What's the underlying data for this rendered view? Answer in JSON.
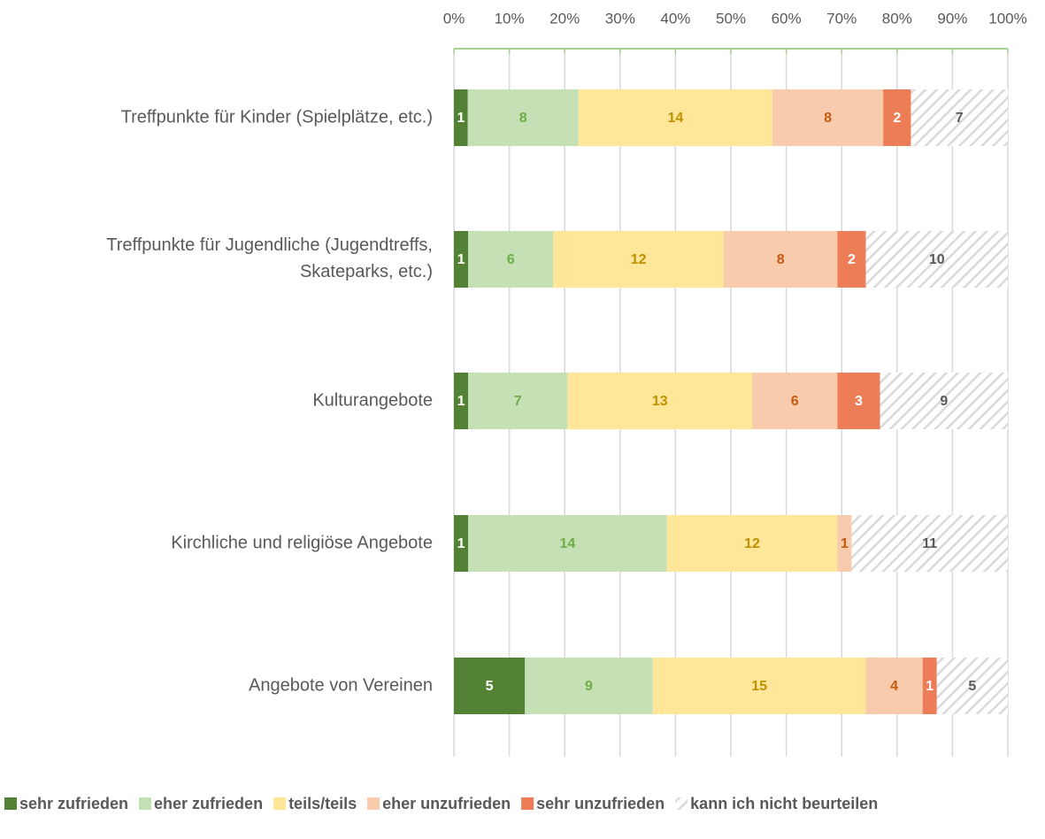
{
  "chart_data": {
    "type": "stacked_bar_100",
    "categories": [
      "Treffpunkte für Kinder (Spielplätze, etc.)",
      "Treffpunkte für Jugendliche (Jugendtreffs,\nSkateparks, etc.)",
      "Kulturangebote",
      "Kirchliche und religiöse Angebote",
      "Angebote von Vereinen"
    ],
    "series": [
      {
        "name": "sehr zufrieden",
        "color": "#548235",
        "label_color": "#ffffff",
        "values": [
          1,
          1,
          1,
          1,
          5
        ]
      },
      {
        "name": "eher zufrieden",
        "color": "#c5e0b4",
        "label_color": "#70ad47",
        "values": [
          8,
          6,
          7,
          14,
          9
        ]
      },
      {
        "name": "teils/teils",
        "color": "#ffe699",
        "label_color": "#bf9000",
        "values": [
          14,
          12,
          13,
          12,
          15
        ]
      },
      {
        "name": "eher unzufrieden",
        "color": "#f8cbad",
        "label_color": "#c55a11",
        "values": [
          8,
          8,
          6,
          1,
          4
        ]
      },
      {
        "name": "sehr unzufrieden",
        "color": "#ed7d57",
        "label_color": "#ffffff",
        "values": [
          2,
          2,
          3,
          null,
          1
        ]
      },
      {
        "name": "kann ich nicht beurteilen",
        "color": "#d9d9d9",
        "hatched": true,
        "label_color": "#595959",
        "values": [
          7,
          10,
          9,
          11,
          5
        ]
      }
    ],
    "xlim": [
      0,
      100
    ],
    "xticks": [
      {
        "value": 0,
        "label": "0%"
      },
      {
        "value": 10,
        "label": "10%"
      },
      {
        "value": 20,
        "label": "20%"
      },
      {
        "value": 30,
        "label": "30%"
      },
      {
        "value": 40,
        "label": "40%"
      },
      {
        "value": 50,
        "label": "50%"
      },
      {
        "value": 60,
        "label": "60%"
      },
      {
        "value": 70,
        "label": "70%"
      },
      {
        "value": 80,
        "label": "80%"
      },
      {
        "value": 90,
        "label": "90%"
      },
      {
        "value": 100,
        "label": "100%"
      }
    ],
    "grid": true,
    "legend": "bottom"
  }
}
